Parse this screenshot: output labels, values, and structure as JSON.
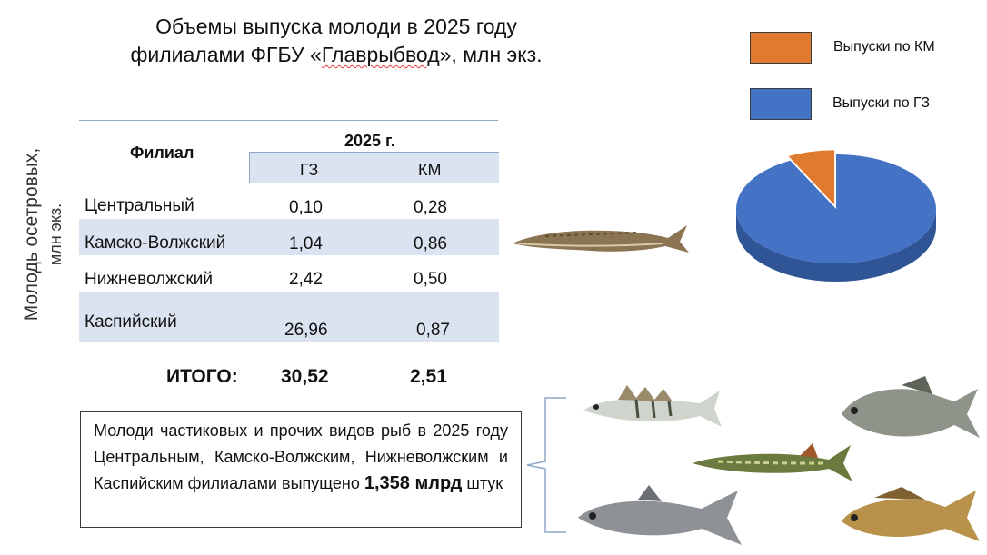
{
  "title": {
    "line1": "Объемы выпуска молоди в 2025 году",
    "line2_pre": "филиалами ФГБУ «",
    "line2_org": "Главрыбвод",
    "line2_post": "», млн экз."
  },
  "legend": {
    "items": [
      {
        "label": "Выпуски по КМ",
        "color": "#e07a2e"
      },
      {
        "label": "Выпуски по ГЗ",
        "color": "#4472c4"
      }
    ]
  },
  "side_label": {
    "line1": "Молодь осетровых,",
    "line2": "млн  экз."
  },
  "table": {
    "col_branch": "Филиал",
    "col_year": "2025 г.",
    "col_gz": "ГЗ",
    "col_km": "КМ",
    "rows": [
      {
        "branch": "Центральный",
        "gz": "0,10",
        "km": "0,28"
      },
      {
        "branch": "Камско-Волжский",
        "gz": "1,04",
        "km": "0,86"
      },
      {
        "branch": "Нижневолжский",
        "gz": "2,42",
        "km": "0,50"
      },
      {
        "branch": "Каспийский",
        "gz": "26,96",
        "km": "0,87"
      }
    ],
    "total_label": "ИТОГО:",
    "total_gz": "30,52",
    "total_km": "2,51"
  },
  "chart_data": {
    "type": "pie",
    "title": "",
    "labels": [
      "Выпуски по ГЗ",
      "Выпуски по КМ"
    ],
    "values": [
      30.52,
      2.51
    ],
    "colors": [
      "#4472c4",
      "#e07a2e"
    ],
    "legend": "top-right"
  },
  "note": {
    "text_pre": "Молоди частиковых и прочих видов рыб в 2025 году Центральным, Камско-Волжским, Нижневолжским и Каспийским филиалами выпущено ",
    "highlight": "1,358 млрд",
    "text_post": " штук"
  }
}
